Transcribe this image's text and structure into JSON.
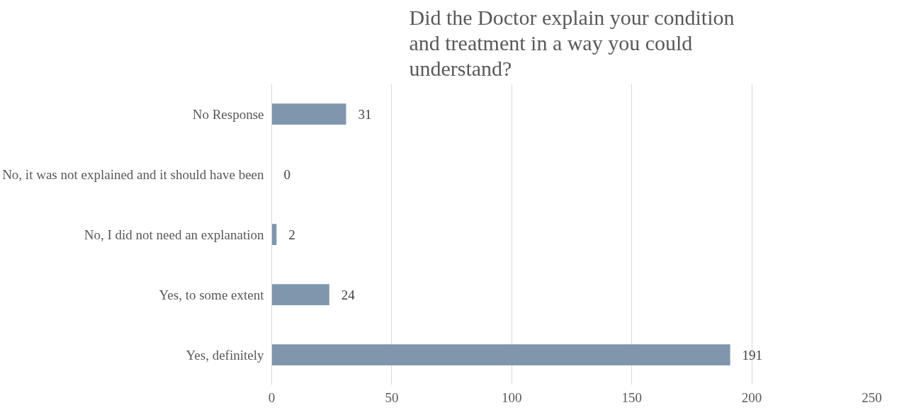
{
  "chart_data": {
    "type": "bar",
    "orientation": "horizontal",
    "title": "Did the Doctor explain your condition and treatment in a way you could understand?",
    "categories": [
      "No Response",
      "No, it was not explained and it should have been",
      "No, I did not need an explanation",
      "Yes, to some extent",
      "Yes, definitely"
    ],
    "values": [
      31,
      0,
      2,
      24,
      191
    ],
    "color": "#7f96ad",
    "xlim": [
      0,
      250
    ],
    "xticks": [
      0,
      50,
      100,
      150,
      200,
      250
    ],
    "grid": "x",
    "data_labels": true
  }
}
